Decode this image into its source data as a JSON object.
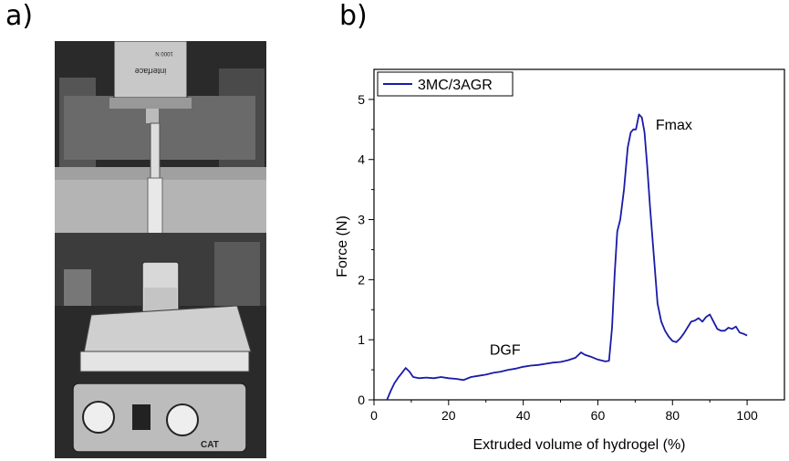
{
  "panels": {
    "a": {
      "label": "a)"
    },
    "b": {
      "label": "b)"
    }
  },
  "photo": {
    "content": "grayscale photograph of syringe extrusion test setup on force testing frame",
    "instrument_text": "interface",
    "rating_text": "1000 N",
    "hotplate_brand": "CAT"
  },
  "chart_data": {
    "type": "line",
    "title": "",
    "xlabel": "Extruded volume of hydrogel (%)",
    "ylabel": "Force (N)",
    "xlim": [
      0,
      110
    ],
    "ylim": [
      0,
      5.5
    ],
    "xticks": [
      0,
      20,
      40,
      60,
      80,
      100
    ],
    "yticks": [
      0,
      1,
      2,
      3,
      4,
      5
    ],
    "grid": false,
    "legend": "top-left",
    "series": [
      {
        "name": "3MC/3AGR",
        "color": "#1a1aa8",
        "x": [
          3.5,
          4.5,
          5.5,
          6.5,
          7.5,
          8.5,
          9.5,
          10.5,
          12,
          14,
          16,
          18,
          20,
          22,
          24,
          26,
          28,
          30,
          32,
          34,
          36,
          38,
          40,
          42,
          44,
          46,
          48,
          50,
          52,
          54,
          55.5,
          56.5,
          58,
          60,
          62,
          63,
          63.8,
          64.5,
          65.2,
          66,
          67,
          68,
          68.8,
          69.5,
          70.2,
          71,
          71.8,
          72.5,
          73.2,
          74,
          75,
          76,
          77,
          78,
          79,
          80,
          81,
          82,
          83,
          84,
          85,
          86,
          87,
          88,
          89,
          90,
          91,
          92,
          93,
          94,
          95,
          96,
          97,
          98,
          99,
          100
        ],
        "y": [
          0.0,
          0.15,
          0.28,
          0.37,
          0.45,
          0.53,
          0.47,
          0.38,
          0.36,
          0.37,
          0.36,
          0.38,
          0.36,
          0.35,
          0.33,
          0.38,
          0.4,
          0.42,
          0.45,
          0.47,
          0.5,
          0.52,
          0.55,
          0.57,
          0.58,
          0.6,
          0.62,
          0.63,
          0.66,
          0.7,
          0.79,
          0.75,
          0.72,
          0.67,
          0.64,
          0.65,
          1.2,
          2.1,
          2.8,
          3.0,
          3.5,
          4.2,
          4.45,
          4.5,
          4.5,
          4.75,
          4.7,
          4.45,
          3.9,
          3.2,
          2.4,
          1.6,
          1.3,
          1.15,
          1.05,
          0.98,
          0.96,
          1.02,
          1.1,
          1.2,
          1.3,
          1.32,
          1.36,
          1.3,
          1.38,
          1.42,
          1.3,
          1.18,
          1.15,
          1.15,
          1.2,
          1.18,
          1.22,
          1.12,
          1.1,
          1.07
        ]
      }
    ],
    "annotations": [
      {
        "text": "Fmax",
        "x": 75.5,
        "y": 4.5
      },
      {
        "text": "DGF",
        "x": 31,
        "y": 0.75
      }
    ]
  }
}
